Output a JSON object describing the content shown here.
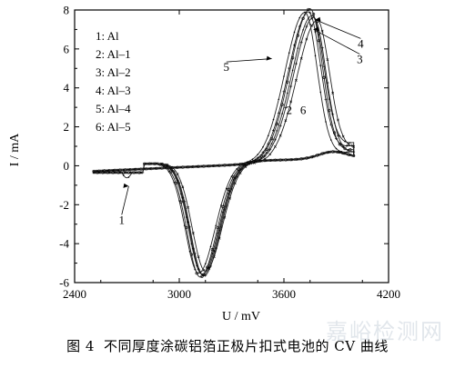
{
  "figure": {
    "number": "图 4",
    "caption": "不同厚度涂碳铝箔正极片扣式电池的 CV 曲线",
    "watermark": "嘉峪检测网"
  },
  "chart_data": {
    "type": "line",
    "xlabel": "U / mV",
    "ylabel": "I / mA",
    "xlim": [
      2400,
      4200
    ],
    "ylim": [
      -6,
      8
    ],
    "xticks": [
      2400,
      3000,
      3600,
      4200
    ],
    "yticks": [
      -6,
      -4,
      -2,
      0,
      2,
      4,
      6,
      8
    ],
    "legend_position": "top-left",
    "legend": [
      {
        "id": "1",
        "label": "Al"
      },
      {
        "id": "2",
        "label": "Al–1"
      },
      {
        "id": "3",
        "label": "Al–2"
      },
      {
        "id": "4",
        "label": "Al–3"
      },
      {
        "id": "5",
        "label": "Al–4"
      },
      {
        "id": "6",
        "label": "Al–5"
      }
    ],
    "series": [
      {
        "name": "Al",
        "marker": "dot",
        "anodic_peak": [
          3760,
          7.05
        ],
        "cathodic_peak": [
          3130,
          -5.75
        ],
        "end_current": 0.95,
        "shoulder": true
      },
      {
        "name": "Al–1",
        "marker": "plus",
        "anodic_peak": [
          3740,
          7.35
        ],
        "cathodic_peak": [
          3140,
          -5.85
        ],
        "end_current": 0.8,
        "shoulder": false
      },
      {
        "name": "Al–2",
        "marker": "cross",
        "anodic_peak": [
          3790,
          6.9
        ],
        "cathodic_peak": [
          3150,
          -5.6
        ],
        "end_current": 0.65,
        "shoulder": false
      },
      {
        "name": "Al–3",
        "marker": "circle",
        "anodic_peak": [
          3750,
          7.6
        ],
        "cathodic_peak": [
          3120,
          -5.9
        ],
        "end_current": 0.55,
        "shoulder": false
      },
      {
        "name": "Al–4",
        "marker": "dot",
        "anodic_peak": [
          3720,
          7.5
        ],
        "cathodic_peak": [
          3110,
          -5.7
        ],
        "end_current": 0.45,
        "shoulder": false
      },
      {
        "name": "Al–5",
        "marker": "plus",
        "anodic_peak": [
          3770,
          7.2
        ],
        "cathodic_peak": [
          3135,
          -5.8
        ],
        "end_current": 0.4,
        "shoulder": false
      }
    ],
    "annotations": [
      {
        "text": "1",
        "target": [
          2710,
          -1.05
        ],
        "at": [
          2670,
          -2.75
        ]
      },
      {
        "text": "2",
        "at": [
          3630,
          2.9
        ]
      },
      {
        "text": "3",
        "target": [
          3770,
          7.0
        ],
        "at": [
          4035,
          5.5
        ]
      },
      {
        "text": "4",
        "target": [
          3780,
          7.5
        ],
        "at": [
          4040,
          6.3
        ]
      },
      {
        "text": "5",
        "target": [
          3530,
          5.5
        ],
        "at": [
          3270,
          5.1
        ]
      },
      {
        "text": "6",
        "at": [
          3710,
          2.9
        ]
      }
    ]
  }
}
